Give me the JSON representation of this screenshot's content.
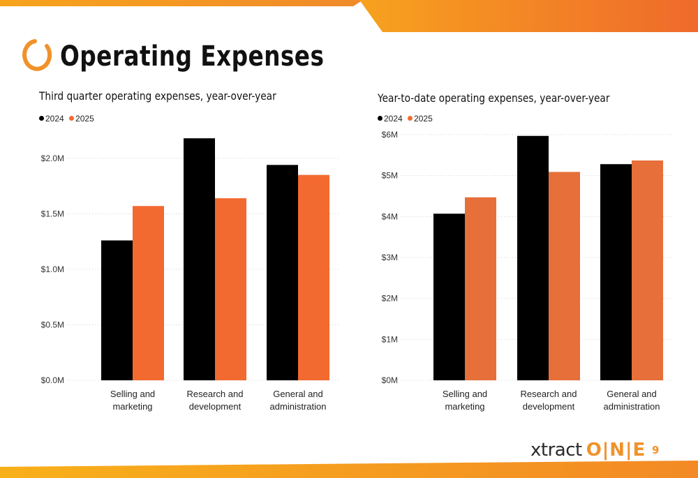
{
  "page": {
    "title": "Operating Expenses",
    "page_number": "9",
    "logo_text": "xtract",
    "logo_mark": "O|N|E"
  },
  "colors": {
    "accent_orange": "#f0922a",
    "series_2024": "#000000",
    "series_2025": "#f26a30",
    "series_2025_ytd": "#e76f3a"
  },
  "chart_data": [
    {
      "type": "bar",
      "title": "Third quarter operating expenses, year-over-year",
      "categories": [
        "Selling and marketing",
        "Research and development",
        "General and administration"
      ],
      "category_lines": [
        [
          "Selling and",
          "marketing"
        ],
        [
          "Research and",
          "development"
        ],
        [
          "General and",
          "administration"
        ]
      ],
      "series": [
        {
          "name": "2024",
          "values": [
            1.26,
            2.18,
            1.94
          ]
        },
        {
          "name": "2025",
          "values": [
            1.57,
            1.64,
            1.85
          ]
        }
      ],
      "ylim": [
        0,
        2.2
      ],
      "yticks": [
        0,
        0.5,
        1.0,
        1.5,
        2.0
      ],
      "ytick_labels": [
        "$0.0M",
        "$0.5M",
        "$1.0M",
        "$1.5M",
        "$2.0M"
      ],
      "grid": true,
      "legend": "top-left"
    },
    {
      "type": "bar",
      "title": "Year-to-date operating expenses, year-over-year",
      "categories": [
        "Selling and marketing",
        "Research and development",
        "General and administration"
      ],
      "category_lines": [
        [
          "Selling and",
          "marketing"
        ],
        [
          "Research and",
          "development"
        ],
        [
          "General and",
          "administration"
        ]
      ],
      "series": [
        {
          "name": "2024",
          "values": [
            4.07,
            5.97,
            5.28
          ]
        },
        {
          "name": "2025",
          "values": [
            4.47,
            5.09,
            5.37
          ]
        }
      ],
      "ylim": [
        0,
        6
      ],
      "yticks": [
        0,
        1,
        2,
        3,
        4,
        5,
        6
      ],
      "ytick_labels": [
        "$0M",
        "$1M",
        "$2M",
        "$3M",
        "$4M",
        "$5M",
        "$6M"
      ],
      "grid": true,
      "legend": "top-left"
    }
  ]
}
